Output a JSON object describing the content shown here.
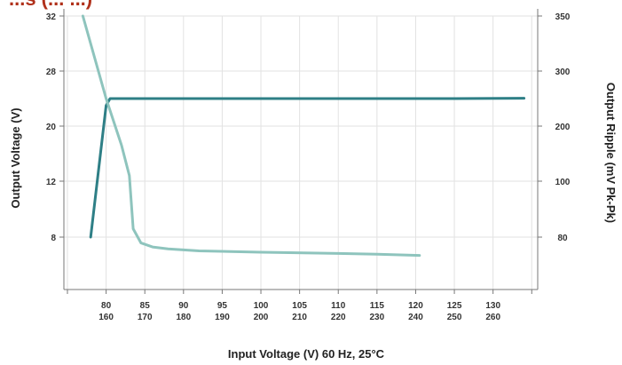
{
  "chart_data": {
    "type": "line",
    "title": "",
    "title_visible_fragment": "...s (... ...)",
    "xlabel": "Input Voltage (V) 60 Hz, 25°C",
    "ylabel_left": "Output Voltage (V)",
    "ylabel_right": "Output Ripple (mV Pk-Pk)",
    "x_ticks_top": [
      "80",
      "85",
      "90",
      "95",
      "100",
      "105",
      "110",
      "115",
      "120",
      "125",
      "130"
    ],
    "x_ticks_bottom": [
      "160",
      "170",
      "180",
      "190",
      "200",
      "210",
      "220",
      "230",
      "240",
      "250",
      "260"
    ],
    "x_tick_values": [
      80,
      85,
      90,
      95,
      100,
      105,
      110,
      115,
      120,
      125,
      130
    ],
    "xlim": [
      74,
      136
    ],
    "y_left_ticks": [
      "8",
      "12",
      "20",
      "28",
      "32"
    ],
    "y_right_ticks": [
      "80",
      "100",
      "200",
      "300",
      "350"
    ],
    "grid": true,
    "colors": {
      "output_voltage": "#2e7f86",
      "output_ripple": "#8ec4bd",
      "grid": "#e2e2e2",
      "axis": "#777777",
      "title": "#b0301a"
    },
    "series": [
      {
        "axis": "left",
        "points": [
          [
            78,
            8.0
          ],
          [
            80,
            23
          ],
          [
            80.5,
            24
          ],
          [
            83,
            24
          ],
          [
            95,
            24
          ],
          [
            110,
            24
          ],
          [
            125,
            24
          ],
          [
            134,
            24.05
          ]
        ]
      },
      {
        "axis": "right",
        "points": [
          [
            77,
            350
          ],
          [
            80,
            250
          ],
          [
            82,
            165
          ],
          [
            83,
            110
          ],
          [
            83.5,
            83
          ],
          [
            84.5,
            71
          ],
          [
            86,
            65
          ],
          [
            88,
            62
          ],
          [
            92,
            59
          ],
          [
            100,
            57
          ],
          [
            110,
            55
          ],
          [
            115,
            54
          ],
          [
            120.5,
            52
          ]
        ]
      }
    ]
  }
}
